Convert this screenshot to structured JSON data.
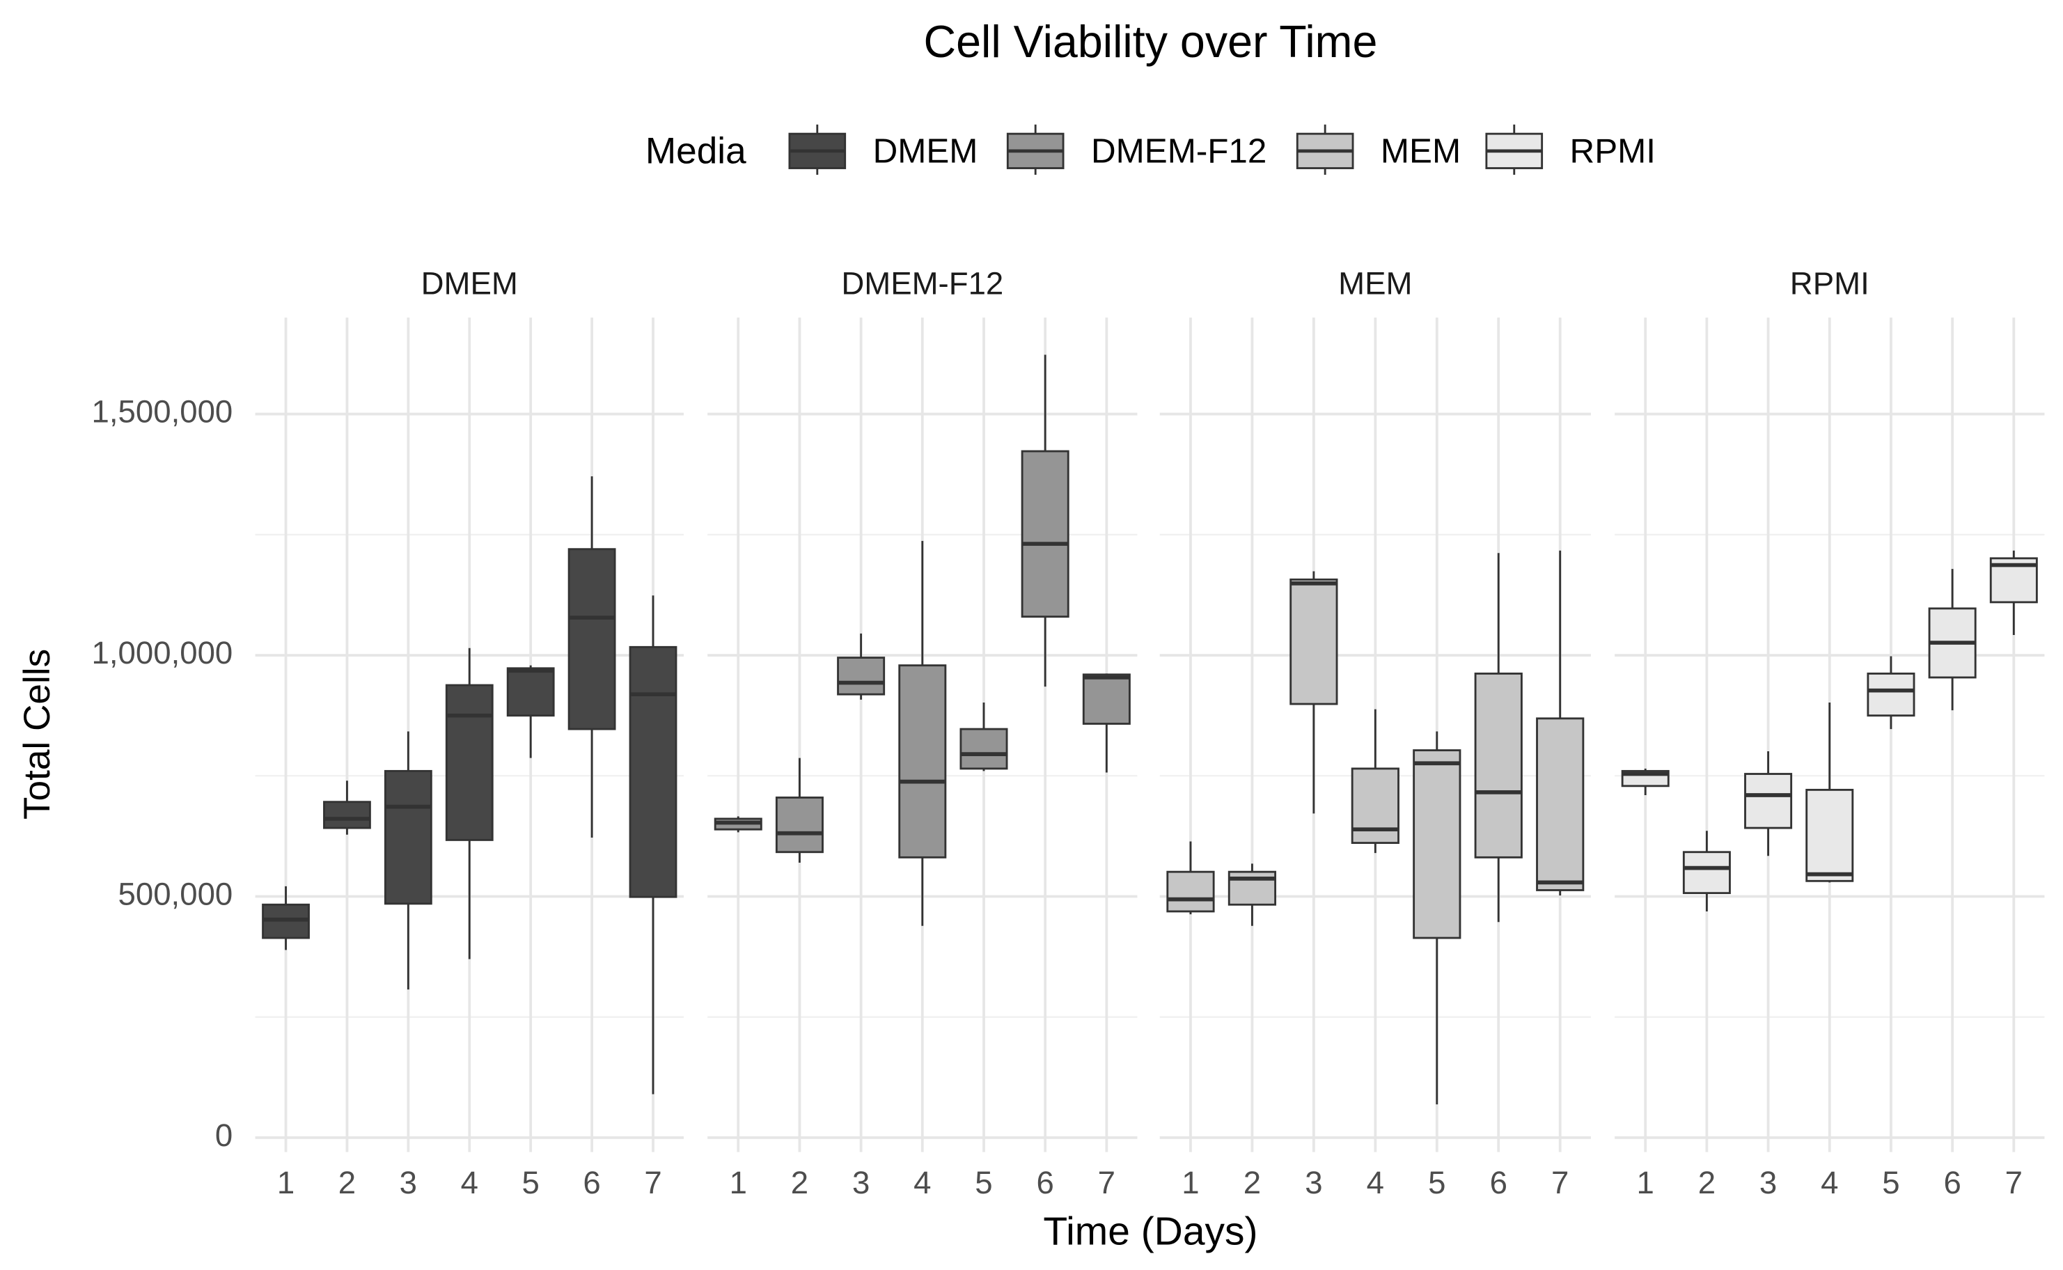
{
  "chart_data": {
    "type": "box",
    "title": "Cell Viability over Time",
    "xlabel": "Time (Days)",
    "ylabel": "Total Cells",
    "legend_title": "Media",
    "legend": "top",
    "categories": [
      "1",
      "2",
      "3",
      "4",
      "5",
      "6",
      "7"
    ],
    "ylim": [
      -30000,
      1700000
    ],
    "yticks": [
      0,
      {
        "value": 500000,
        "label": "500,000"
      },
      {
        "value": 1000000,
        "label": "1,000,000"
      },
      {
        "value": 1500000,
        "label": "1,500,000"
      }
    ],
    "yminor": [
      250000,
      750000,
      1250000
    ],
    "grid": true,
    "series": [
      {
        "name": "DMEM",
        "color": "#474747",
        "min": [
          389000,
          628000,
          307000,
          370000,
          787000,
          622000,
          90000
        ],
        "q1": [
          414000,
          642000,
          485000,
          617000,
          875000,
          847000,
          499000
        ],
        "median": [
          452000,
          661000,
          686000,
          875000,
          968000,
          1078000,
          919000
        ],
        "q3": [
          483000,
          696000,
          760000,
          938000,
          973000,
          1220000,
          1017000
        ],
        "max": [
          521000,
          740000,
          842000,
          1015000,
          979000,
          1371000,
          1124000
        ]
      },
      {
        "name": "DMEM-F12",
        "color": "#959595",
        "min": [
          633000,
          570000,
          908000,
          439000,
          760000,
          935000,
          757000
        ],
        "q1": [
          639000,
          592000,
          919000,
          581000,
          765000,
          1080000,
          858000
        ],
        "median": [
          653000,
          631000,
          943000,
          738000,
          795000,
          1231000,
          954000
        ],
        "q3": [
          661000,
          705000,
          995000,
          979000,
          847000,
          1423000,
          960000
        ],
        "max": [
          666000,
          787000,
          1045000,
          1237000,
          902000,
          1623000,
          962000
        ]
      },
      {
        "name": "MEM",
        "color": "#c6c6c6",
        "min": [
          463000,
          439000,
          672000,
          590000,
          69000,
          447000,
          502000
        ],
        "q1": [
          469000,
          483000,
          899000,
          611000,
          414000,
          581000,
          513000
        ],
        "median": [
          494000,
          537000,
          1149000,
          639000,
          776000,
          716000,
          529000
        ],
        "q3": [
          551000,
          551000,
          1157000,
          765000,
          803000,
          962000,
          869000
        ],
        "max": [
          614000,
          568000,
          1174000,
          888000,
          842000,
          1212000,
          1217000
        ]
      },
      {
        "name": "RPMI",
        "color": "#e8e8e8",
        "min": [
          710000,
          469000,
          584000,
          529000,
          847000,
          886000,
          1042000
        ],
        "q1": [
          729000,
          507000,
          642000,
          532000,
          875000,
          954000,
          1110000
        ],
        "median": [
          754000,
          559000,
          710000,
          546000,
          927000,
          1026000,
          1187000
        ],
        "q3": [
          760000,
          592000,
          754000,
          721000,
          962000,
          1097000,
          1201000
        ],
        "max": [
          765000,
          636000,
          801000,
          902000,
          998000,
          1179000,
          1217000
        ]
      }
    ]
  }
}
